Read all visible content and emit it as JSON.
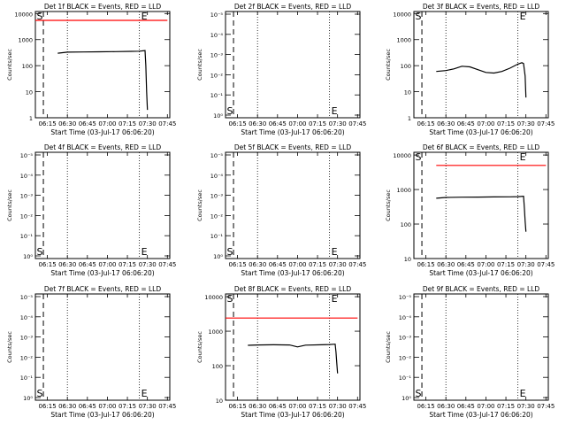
{
  "chart_data": [
    {
      "type": "line",
      "title": "Det 1f BLACK = Events, RED = LLD",
      "xlabel": "Start Time (03-Jul-17 06:06:20)",
      "ylabel": "Counts/sec",
      "x_ticks": [
        "06:15",
        "06:30",
        "06:45",
        "07:00",
        "07:15",
        "07:30",
        "07:45"
      ],
      "y_ticks": [
        "1",
        "10",
        "100",
        "1000",
        "10000"
      ],
      "ylim": [
        1,
        12000
      ],
      "y_scale": "log",
      "markers": {
        "start": "S",
        "end": "E"
      },
      "series": [
        {
          "color": "#ff0000",
          "x": [
            6.1,
            7.75
          ],
          "y": [
            5500,
            5500
          ]
        },
        {
          "color": "#000000",
          "x": [
            6.38,
            6.5,
            6.7,
            6.9,
            7.1,
            7.3,
            7.4,
            7.47,
            7.48,
            7.49,
            7.5
          ],
          "y": [
            300,
            330,
            335,
            340,
            345,
            355,
            360,
            380,
            100,
            10,
            2
          ]
        }
      ]
    },
    {
      "type": "line",
      "title": "Det 2f BLACK = Events, RED = LLD",
      "xlabel": "Start Time (03-Jul-17 06:06:20)",
      "ylabel": "Counts/sec",
      "x_ticks": [
        "06:15",
        "06:30",
        "06:45",
        "07:00",
        "07:15",
        "07:30",
        "07:45"
      ],
      "y_ticks": [
        "10⁰",
        "10⁻¹",
        "10⁻²",
        "10⁻³",
        "10⁻⁴",
        "10⁻⁵"
      ],
      "y_scale": "log",
      "markers": {
        "start": "S",
        "end": "E"
      },
      "series": []
    },
    {
      "type": "line",
      "title": "Det 3f BLACK = Events, RED = LLD",
      "xlabel": "Start Time (03-Jul-17 06:06:20)",
      "ylabel": "Counts/sec",
      "x_ticks": [
        "06:15",
        "06:30",
        "06:45",
        "07:00",
        "07:15",
        "07:30",
        "07:45"
      ],
      "y_ticks": [
        "1",
        "10",
        "100",
        "1000",
        "10000"
      ],
      "ylim": [
        1,
        12000
      ],
      "y_scale": "log",
      "markers": {
        "start": "S",
        "end": "E"
      },
      "series": [
        {
          "color": "#000000",
          "x": [
            6.38,
            6.5,
            6.6,
            6.7,
            6.8,
            6.9,
            7.0,
            7.1,
            7.2,
            7.3,
            7.4,
            7.45,
            7.47,
            7.49,
            7.5
          ],
          "y": [
            60,
            65,
            75,
            95,
            90,
            70,
            55,
            52,
            60,
            80,
            115,
            130,
            120,
            40,
            6
          ]
        }
      ]
    },
    {
      "type": "line",
      "title": "Det 4f BLACK = Events, RED = LLD",
      "xlabel": "Start Time (03-Jul-17 06:06:20)",
      "ylabel": "Counts/sec",
      "x_ticks": [
        "06:15",
        "06:30",
        "06:45",
        "07:00",
        "07:15",
        "07:30",
        "07:45"
      ],
      "y_ticks": [
        "10⁰",
        "10⁻¹",
        "10⁻²",
        "10⁻³",
        "10⁻⁴",
        "10⁻⁵"
      ],
      "y_scale": "log",
      "markers": {
        "start": "S",
        "end": "E"
      },
      "series": []
    },
    {
      "type": "line",
      "title": "Det 5f BLACK = Events, RED = LLD",
      "xlabel": "Start Time (03-Jul-17 06:06:20)",
      "ylabel": "Counts/sec",
      "x_ticks": [
        "06:15",
        "06:30",
        "06:45",
        "07:00",
        "07:15",
        "07:30",
        "07:45"
      ],
      "y_ticks": [
        "10⁰",
        "10⁻¹",
        "10⁻²",
        "10⁻³",
        "10⁻⁴",
        "10⁻⁵"
      ],
      "y_scale": "log",
      "markers": {
        "start": "S",
        "end": "E"
      },
      "series": []
    },
    {
      "type": "line",
      "title": "Det 6f BLACK = Events, RED = LLD",
      "xlabel": "Start Time (03-Jul-17 06:06:20)",
      "ylabel": "Counts/sec",
      "x_ticks": [
        "06:15",
        "06:30",
        "06:45",
        "07:00",
        "07:15",
        "07:30",
        "07:45"
      ],
      "y_ticks": [
        "10",
        "100",
        "1000",
        "10000"
      ],
      "ylim": [
        10,
        12000
      ],
      "y_scale": "log",
      "markers": {
        "start": "S",
        "end": "E"
      },
      "series": [
        {
          "color": "#ff0000",
          "x": [
            6.38,
            7.75
          ],
          "y": [
            5000,
            5000
          ]
        },
        {
          "color": "#000000",
          "x": [
            6.38,
            6.5,
            6.7,
            6.9,
            7.1,
            7.3,
            7.4,
            7.47,
            7.48,
            7.49,
            7.5
          ],
          "y": [
            560,
            590,
            600,
            605,
            610,
            615,
            620,
            640,
            300,
            120,
            60
          ]
        }
      ]
    },
    {
      "type": "line",
      "title": "Det 7f BLACK = Events, RED = LLD",
      "xlabel": "Start Time (03-Jul-17 06:06:20)",
      "ylabel": "Counts/sec",
      "x_ticks": [
        "06:15",
        "06:30",
        "06:45",
        "07:00",
        "07:15",
        "07:30",
        "07:45"
      ],
      "y_ticks": [
        "10⁰",
        "10⁻¹",
        "10⁻²",
        "10⁻³",
        "10⁻⁴",
        "10⁻⁵"
      ],
      "y_scale": "log",
      "markers": {
        "start": "S",
        "end": "E"
      },
      "series": []
    },
    {
      "type": "line",
      "title": "Det 8f BLACK = Events, RED = LLD",
      "xlabel": "Start Time (03-Jul-17 06:06:20)",
      "ylabel": "Counts/sec",
      "x_ticks": [
        "06:15",
        "06:30",
        "06:45",
        "07:00",
        "07:15",
        "07:30",
        "07:45"
      ],
      "y_ticks": [
        "10",
        "100",
        "1000",
        "10000"
      ],
      "ylim": [
        10,
        12000
      ],
      "y_scale": "log",
      "markers": {
        "start": "S",
        "end": "E"
      },
      "series": [
        {
          "color": "#ff0000",
          "x": [
            6.1,
            7.75
          ],
          "y": [
            2400,
            2400
          ]
        },
        {
          "color": "#000000",
          "x": [
            6.38,
            6.5,
            6.7,
            6.9,
            7.0,
            7.1,
            7.3,
            7.4,
            7.47,
            7.48,
            7.49,
            7.5
          ],
          "y": [
            390,
            400,
            405,
            400,
            350,
            395,
            405,
            410,
            420,
            250,
            120,
            60
          ]
        }
      ]
    },
    {
      "type": "line",
      "title": "Det 9f BLACK = Events, RED = LLD",
      "xlabel": "Start Time (03-Jul-17 06:06:20)",
      "ylabel": "Counts/sec",
      "x_ticks": [
        "06:15",
        "06:30",
        "06:45",
        "07:00",
        "07:15",
        "07:30",
        "07:45"
      ],
      "y_ticks": [
        "10⁰",
        "10⁻¹",
        "10⁻²",
        "10⁻³",
        "10⁻⁴",
        "10⁻⁵"
      ],
      "y_scale": "log",
      "markers": {
        "start": "S",
        "end": "E"
      },
      "series": []
    }
  ]
}
